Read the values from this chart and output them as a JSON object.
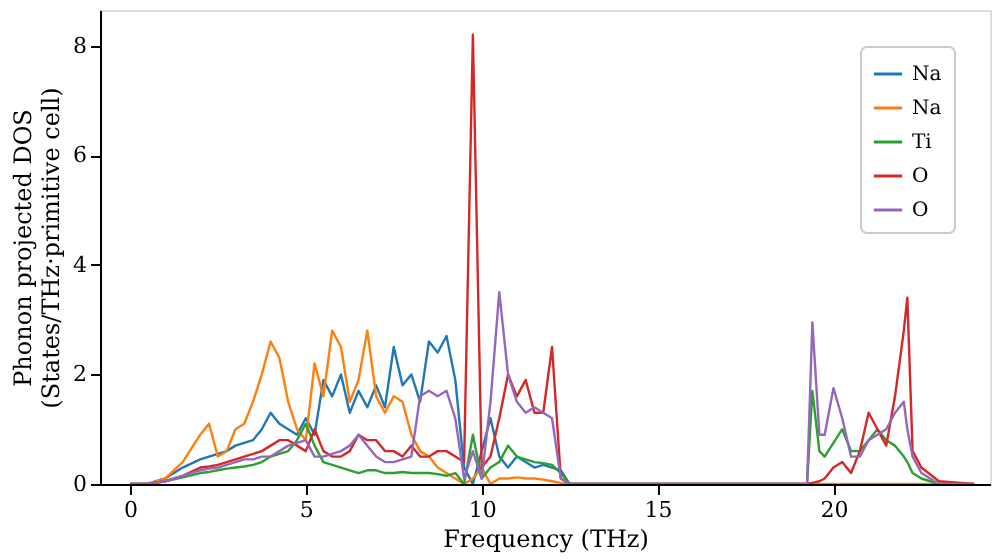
{
  "chart_data": {
    "type": "line",
    "xlabel": "Frequency (THz)",
    "ylabel": "Phonon projected DOS\n(States/THz·primitive cell)",
    "x": [
      0,
      0.5,
      1,
      1.5,
      2,
      2.25,
      2.5,
      2.75,
      3,
      3.25,
      3.5,
      3.75,
      4,
      4.25,
      4.5,
      4.75,
      5,
      5.25,
      5.5,
      5.75,
      6,
      6.25,
      6.5,
      6.75,
      7,
      7.25,
      7.5,
      7.75,
      8,
      8.25,
      8.5,
      8.75,
      9,
      9.25,
      9.5,
      9.75,
      10,
      10.25,
      10.5,
      10.75,
      11,
      11.25,
      11.5,
      11.75,
      12,
      12.25,
      12.5,
      19,
      19.25,
      19.4,
      19.6,
      19.75,
      20,
      20.25,
      20.5,
      20.75,
      21,
      21.25,
      21.5,
      21.75,
      22,
      22.1,
      22.25,
      22.5,
      23,
      24
    ],
    "series": [
      {
        "name": "Na",
        "color": "#1f77b4",
        "values": [
          0,
          0,
          0.1,
          0.3,
          0.45,
          0.5,
          0.55,
          0.6,
          0.7,
          0.75,
          0.8,
          1.0,
          1.3,
          1.1,
          1.0,
          0.9,
          1.2,
          0.9,
          1.9,
          1.6,
          2.0,
          1.3,
          1.7,
          1.4,
          1.8,
          1.4,
          2.5,
          1.8,
          2.0,
          1.5,
          2.6,
          2.4,
          2.7,
          1.9,
          0.3,
          0,
          0.6,
          1.2,
          0.5,
          0.3,
          0.5,
          0.4,
          0.3,
          0.35,
          0.3,
          0.25,
          0,
          0,
          null,
          null,
          null,
          null,
          null,
          null,
          null,
          null,
          null,
          null,
          null,
          null,
          null,
          null,
          null,
          null,
          null,
          null
        ]
      },
      {
        "name": "Na",
        "color": "#ff7f0e",
        "values": [
          0,
          0,
          0.1,
          0.4,
          0.9,
          1.1,
          0.5,
          0.6,
          1.0,
          1.1,
          1.5,
          2.0,
          2.6,
          2.3,
          1.5,
          1.0,
          0.8,
          2.2,
          1.6,
          2.8,
          2.5,
          1.5,
          1.9,
          2.8,
          1.6,
          1.3,
          1.6,
          1.5,
          0.9,
          0.6,
          0.5,
          0.3,
          0.2,
          0.1,
          0,
          0.1,
          0.3,
          0,
          0.1,
          0.1,
          0.12,
          0.1,
          0.1,
          0.08,
          0.05,
          0.02,
          0,
          0,
          0,
          0,
          0,
          0,
          0,
          0,
          0,
          0,
          0,
          0,
          0,
          0,
          0,
          0,
          0,
          0,
          0,
          0
        ]
      },
      {
        "name": "Ti",
        "color": "#2ca02c",
        "values": [
          0,
          0,
          0.05,
          0.12,
          0.2,
          0.22,
          0.25,
          0.28,
          0.3,
          0.32,
          0.35,
          0.4,
          0.5,
          0.55,
          0.6,
          0.8,
          1.1,
          0.7,
          0.4,
          0.35,
          0.3,
          0.25,
          0.2,
          0.25,
          0.25,
          0.2,
          0.2,
          0.22,
          0.2,
          0.2,
          0.2,
          0.18,
          0.15,
          0.2,
          0,
          0.9,
          0.1,
          0.3,
          0.4,
          0.7,
          0.5,
          0.45,
          0.4,
          0.38,
          0.35,
          0.2,
          0,
          0,
          0,
          1.7,
          0.6,
          0.5,
          0.75,
          1.0,
          0.6,
          0.6,
          0.8,
          1.0,
          0.8,
          0.7,
          0.5,
          0.4,
          0.2,
          0.1,
          0,
          0
        ]
      },
      {
        "name": "O",
        "color": "#d62728",
        "values": [
          0,
          0,
          0.05,
          0.15,
          0.3,
          0.32,
          0.35,
          0.4,
          0.45,
          0.5,
          0.55,
          0.6,
          0.7,
          0.8,
          0.8,
          0.7,
          0.6,
          1.0,
          0.6,
          0.5,
          0.5,
          0.6,
          0.9,
          0.8,
          0.8,
          0.6,
          0.6,
          0.5,
          0.7,
          0.5,
          0.5,
          0.6,
          0.6,
          0.5,
          0.4,
          8.2,
          0.3,
          0.5,
          1.2,
          2.0,
          1.6,
          1.9,
          1.3,
          1.3,
          2.5,
          0.1,
          0,
          0,
          0,
          0.02,
          0.05,
          0.1,
          0.3,
          0.4,
          0.2,
          0.6,
          1.3,
          1.0,
          0.7,
          1.6,
          2.8,
          3.4,
          0.6,
          0.3,
          0.05,
          0
        ]
      },
      {
        "name": "O",
        "color": "#9467bd",
        "values": [
          0,
          0,
          0.05,
          0.15,
          0.25,
          0.28,
          0.3,
          0.35,
          0.4,
          0.45,
          0.45,
          0.5,
          0.5,
          0.6,
          0.7,
          0.75,
          0.8,
          0.5,
          0.5,
          0.55,
          0.6,
          0.7,
          0.9,
          0.7,
          0.5,
          0.4,
          0.4,
          0.45,
          0.5,
          1.6,
          1.7,
          1.6,
          1.7,
          1.2,
          0.1,
          0.6,
          0.1,
          1.5,
          3.5,
          2.0,
          1.5,
          1.3,
          1.4,
          1.3,
          1.2,
          0.1,
          0,
          0,
          0,
          2.95,
          0.9,
          0.9,
          1.75,
          1.2,
          0.5,
          0.5,
          0.8,
          0.9,
          1.0,
          1.3,
          1.5,
          1.0,
          0.5,
          0.2,
          0,
          0
        ]
      }
    ],
    "xlim": [
      -0.85,
      24.45
    ],
    "ylim": [
      0,
      8.65
    ],
    "xticks": [
      0,
      5,
      10,
      15,
      20
    ],
    "yticks": [
      0,
      2,
      4,
      6,
      8
    ],
    "grid": false,
    "legend": "top right",
    "marker": "none",
    "line_style": "solid"
  }
}
